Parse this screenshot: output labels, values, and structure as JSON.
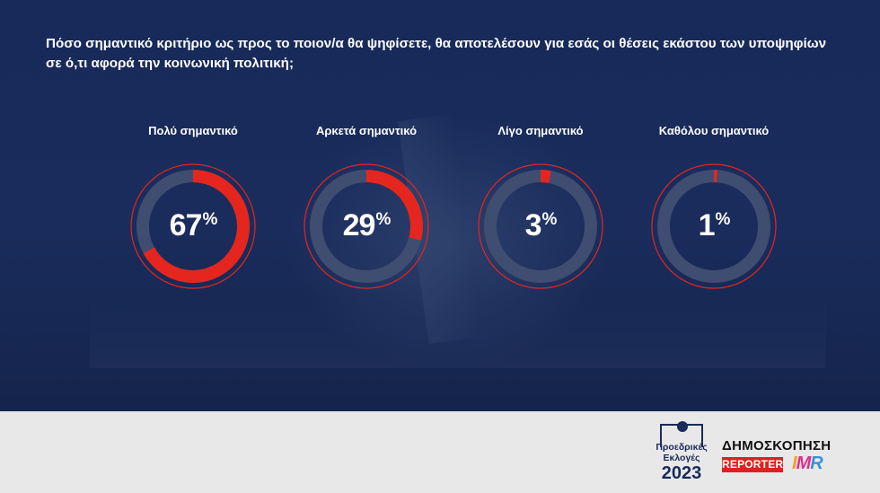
{
  "question": "Πόσο σημαντικό κριτήριο ως προς το ποιον/α θα ψηφίσετε, θα αποτελέσουν για εσάς οι θέσεις εκάστου των υποψηφίων σε ό,τι αφορά την κοινωνική πολιτική;",
  "colors": {
    "background": "#1a2c5c",
    "ring_track": "#3e4d70",
    "ring_value": "#e5261e",
    "text": "#ffffff",
    "footer": "#e8e8e8"
  },
  "chart_data": {
    "type": "pie",
    "unit": "%",
    "categories": [
      "Πολύ σημαντικό",
      "Αρκετά σημαντικό",
      "Λίγο σημαντικό",
      "Καθόλου σημαντικό"
    ],
    "values": [
      67,
      29,
      3,
      1
    ],
    "display": [
      "67",
      "29",
      "3",
      "1"
    ]
  },
  "footer": {
    "elections_logo_line1": "Προεδρικές",
    "elections_logo_line2": "Εκλογές",
    "elections_logo_year": "2023",
    "poll_title": "ΔΗΜΟΣΚΟΠΗΣΗ",
    "reporter_logo": "REPORTER",
    "imr_logo": "IMR"
  }
}
